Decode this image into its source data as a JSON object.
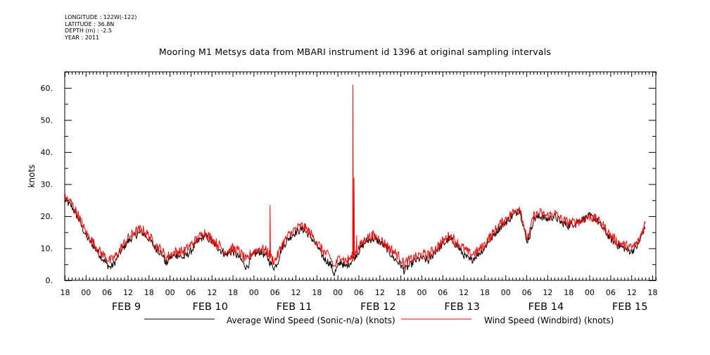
{
  "header": {
    "longitude": "LONGITUDE : 122W(-122)",
    "latitude": "LATITUDE : 36.8N",
    "depth": "DEPTH (m) : -2.5",
    "year": "YEAR : 2011"
  },
  "chart_data": {
    "type": "line",
    "title": "Mooring M1 Metsys data from MBARI instrument id 1396 at original sampling intervals",
    "ylabel": "knots",
    "xlabel": "",
    "ylim": [
      0,
      65
    ],
    "yticks": [
      0,
      10,
      20,
      30,
      40,
      50,
      60
    ],
    "ytick_labels": [
      "0.",
      "10.",
      "20.",
      "30.",
      "40.",
      "50.",
      "60."
    ],
    "xlim_hours": [
      -6,
      163
    ],
    "hour_ticks": [
      0,
      6,
      12,
      18
    ],
    "hour_tick_labels": [
      "00",
      "06",
      "12",
      "18"
    ],
    "days": [
      "FEB  9",
      "FEB 10",
      "FEB 11",
      "FEB 12",
      "FEB 13",
      "FEB 14",
      "FEB 15"
    ],
    "grid": false,
    "legend_position": "bottom",
    "colors": {
      "series_1": "#000000",
      "series_2": "#ff0000"
    },
    "series": [
      {
        "name": "Average Wind Speed (Sonic-n/a) (knots)",
        "x": [
          -6,
          -4,
          -2,
          0,
          2,
          4,
          6,
          7,
          8,
          9,
          10,
          12,
          14,
          16,
          18,
          20,
          22,
          23,
          24,
          26,
          28,
          30,
          32,
          34,
          36,
          38,
          40,
          42,
          44,
          46,
          47,
          48,
          50,
          52,
          53,
          54,
          55,
          56,
          58,
          60,
          62,
          64,
          66,
          68,
          70,
          71,
          72,
          73,
          74,
          76,
          78,
          80,
          82,
          84,
          86,
          88,
          90,
          91,
          92,
          94,
          96,
          98,
          100,
          102,
          104,
          106,
          108,
          110,
          112,
          114,
          115,
          116,
          118,
          120,
          122,
          124,
          125,
          126,
          127,
          128,
          130,
          132,
          134,
          136,
          138,
          140,
          142,
          144,
          146,
          148,
          150,
          152,
          154,
          156,
          158,
          160
        ],
        "values": [
          25,
          23,
          19,
          14,
          11,
          8,
          5,
          4,
          5,
          7,
          9,
          12,
          14,
          15,
          13,
          10,
          8,
          5,
          7,
          8,
          7,
          9,
          12,
          14,
          12,
          10,
          8,
          9,
          7,
          4,
          6,
          8,
          9,
          7,
          5,
          4,
          6,
          10,
          13,
          15,
          16,
          14,
          11,
          7,
          5,
          2,
          4,
          6,
          4,
          6,
          9,
          12,
          13,
          12,
          10,
          7,
          5,
          3,
          4,
          6,
          7,
          6,
          9,
          11,
          13,
          11,
          8,
          6,
          8,
          10,
          12,
          13,
          16,
          18,
          20,
          22,
          18,
          12,
          14,
          19,
          20,
          19,
          20,
          18,
          17,
          18,
          19,
          20,
          19,
          16,
          13,
          11,
          10,
          9,
          11,
          17
        ],
        "noise": 1.2
      },
      {
        "name": "Wind Speed (Windbird) (knots)",
        "x": [
          -6,
          -4,
          -2,
          0,
          2,
          4,
          6,
          7,
          8,
          9,
          10,
          12,
          14,
          16,
          18,
          20,
          22,
          23,
          24,
          26,
          28,
          30,
          32,
          34,
          36,
          38,
          40,
          42,
          44,
          46,
          47,
          48,
          50,
          52,
          53,
          54,
          55,
          56,
          58,
          60,
          62,
          64,
          66,
          68,
          70,
          71,
          72,
          73,
          74,
          76,
          78,
          80,
          82,
          84,
          86,
          88,
          90,
          91,
          92,
          94,
          96,
          98,
          100,
          102,
          104,
          106,
          108,
          110,
          112,
          114,
          115,
          116,
          118,
          120,
          122,
          124,
          125,
          126,
          127,
          128,
          130,
          132,
          134,
          136,
          138,
          140,
          142,
          144,
          146,
          148,
          150,
          152,
          154,
          156,
          158,
          160
        ],
        "values": [
          26,
          24,
          20,
          15,
          12,
          9,
          7,
          6,
          7,
          8,
          10,
          13,
          15,
          16,
          14,
          11,
          9,
          7,
          8,
          9,
          9,
          11,
          13,
          15,
          13,
          11,
          9,
          10,
          9,
          6,
          8,
          9,
          10,
          9,
          7,
          6,
          8,
          11,
          14,
          16,
          17,
          15,
          12,
          9,
          7,
          4,
          6,
          8,
          6,
          7,
          10,
          13,
          14,
          13,
          11,
          9,
          7,
          5,
          6,
          7,
          8,
          8,
          10,
          12,
          14,
          12,
          10,
          8,
          9,
          11,
          13,
          14,
          17,
          19,
          21,
          23,
          19,
          13,
          15,
          20,
          21,
          20,
          21,
          19,
          18,
          18,
          19,
          20,
          19,
          17,
          14,
          12,
          11,
          10,
          12,
          18
        ],
        "noise": 1.6,
        "spikes": [
          {
            "x": 52.7,
            "value": 23.5
          },
          {
            "x": 76.4,
            "value": 61
          },
          {
            "x": 76.7,
            "value": 32
          },
          {
            "x": 77.5,
            "value": 14
          },
          {
            "x": 78.6,
            "value": 12
          },
          {
            "x": 79.2,
            "value": 11.5
          }
        ]
      }
    ]
  }
}
